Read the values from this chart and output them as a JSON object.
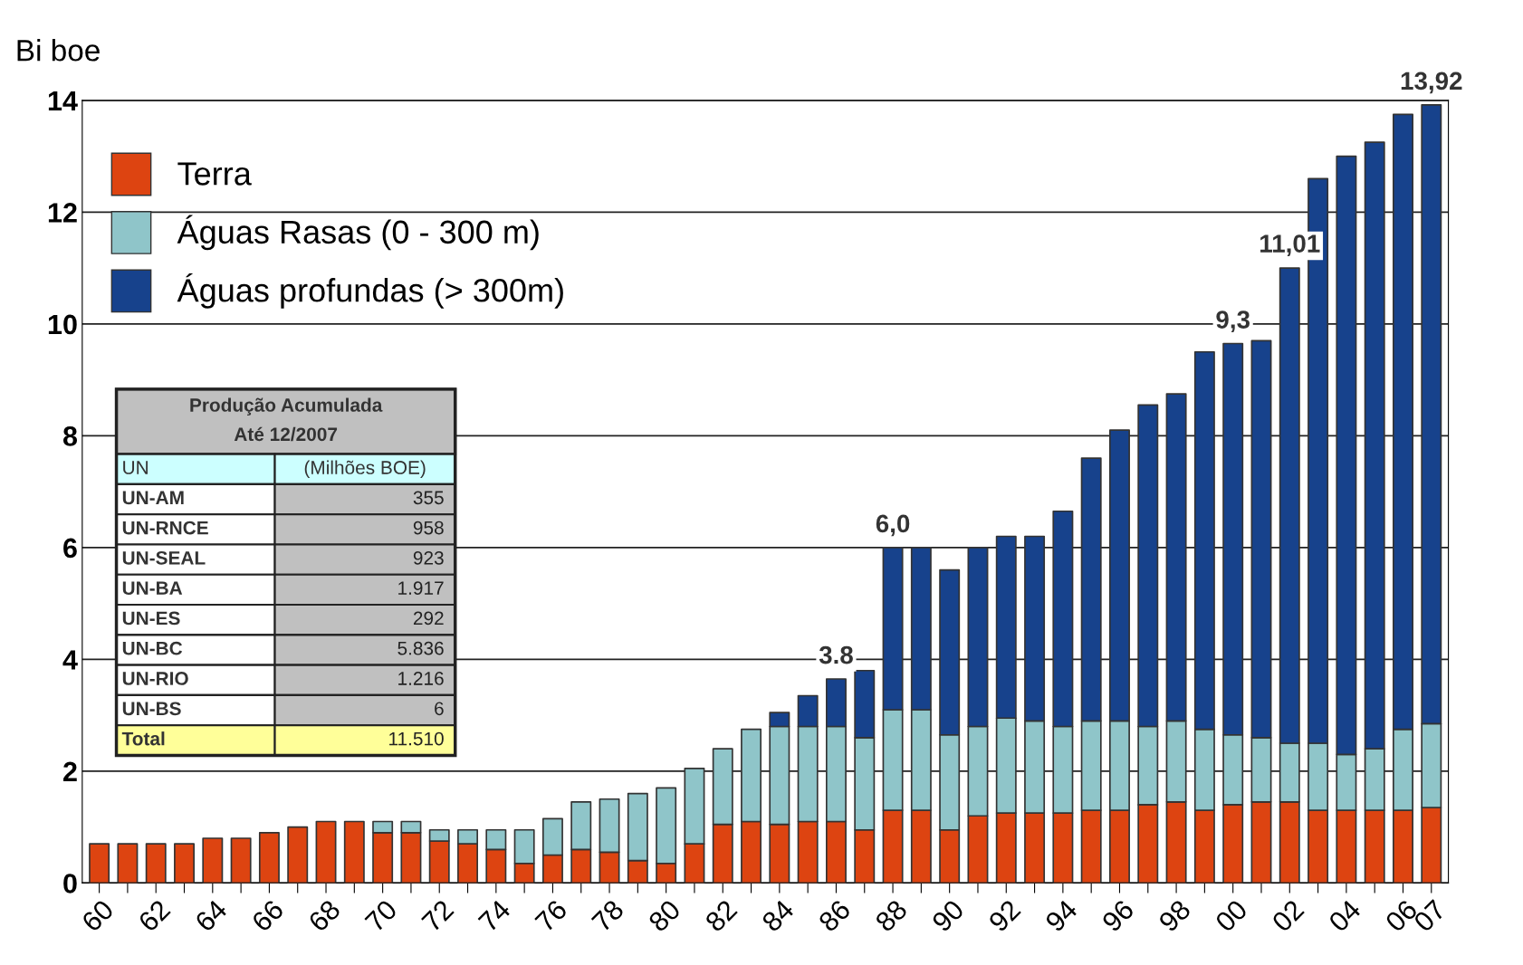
{
  "chart_data": {
    "type": "bar",
    "stacked": true,
    "ylabel": "Bi boe",
    "categories": [
      "60",
      null,
      "62",
      null,
      "64",
      null,
      "66",
      null,
      "68",
      null,
      "70",
      null,
      "72",
      null,
      "74",
      null,
      "76",
      null,
      "78",
      null,
      "80",
      null,
      "82",
      null,
      "84",
      null,
      "86",
      null,
      "88",
      null,
      "90",
      null,
      "92",
      null,
      "94",
      null,
      "96",
      null,
      "98",
      null,
      "00",
      null,
      "02",
      null,
      "04",
      null,
      "06",
      "07"
    ],
    "series": [
      {
        "name": "Terra",
        "color": "#dd4411",
        "values": [
          0.7,
          0.7,
          0.7,
          0.7,
          0.8,
          0.8,
          0.9,
          1.0,
          1.1,
          1.1,
          0.9,
          0.9,
          0.75,
          0.7,
          0.6,
          0.35,
          0.5,
          0.6,
          0.55,
          0.4,
          0.35,
          0.7,
          1.05,
          1.1,
          1.05,
          1.1,
          1.1,
          0.95,
          1.3,
          1.3,
          0.95,
          1.2,
          1.25,
          1.25,
          1.25,
          1.3,
          1.3,
          1.4,
          1.45,
          1.3,
          1.4,
          1.45,
          1.45,
          1.3,
          1.3,
          1.3,
          1.3,
          1.35
        ]
      },
      {
        "name": "Águas Rasas (0 - 300 m)",
        "color": "#8fc5c9",
        "values": [
          null,
          null,
          null,
          null,
          null,
          null,
          null,
          null,
          null,
          null,
          0.2,
          0.2,
          0.2,
          0.25,
          0.35,
          0.6,
          0.65,
          0.85,
          0.95,
          1.2,
          1.35,
          1.35,
          1.35,
          1.65,
          1.75,
          1.7,
          1.7,
          1.65,
          1.8,
          1.8,
          1.7,
          1.6,
          1.7,
          1.65,
          1.55,
          1.6,
          1.6,
          1.4,
          1.45,
          1.45,
          1.25,
          1.15,
          1.05,
          1.2,
          1.0,
          1.1,
          1.45,
          1.5
        ]
      },
      {
        "name": "Águas profundas (> 300m)",
        "color": "#17428c",
        "values": [
          null,
          null,
          null,
          null,
          null,
          null,
          null,
          null,
          null,
          null,
          null,
          null,
          null,
          null,
          null,
          null,
          null,
          null,
          null,
          null,
          null,
          null,
          null,
          null,
          0.25,
          0.55,
          0.85,
          1.2,
          2.9,
          2.9,
          2.95,
          3.2,
          3.25,
          3.3,
          3.85,
          4.7,
          5.2,
          5.75,
          5.85,
          6.75,
          7.0,
          7.1,
          8.5,
          10.1,
          10.7,
          10.85,
          11.0,
          11.07
        ]
      }
    ],
    "ylim": [
      0,
      14
    ],
    "yticks": [
      0,
      2,
      4,
      6,
      8,
      10,
      12,
      14
    ],
    "grid": "y",
    "legend": "top left",
    "annotations": [
      {
        "text": "3.8",
        "x": "86",
        "y": 3.65
      },
      {
        "text": "6,0",
        "x": "88",
        "y": 6.0
      },
      {
        "text": "9,3",
        "x": "00",
        "y": 9.65
      },
      {
        "text": "11,01",
        "x": "02",
        "y": 11.01
      },
      {
        "text": "13,92",
        "x": "07",
        "y": 13.92
      },
      "Produção Acumulada",
      "Até 12/2007",
      "UN",
      "(Milhões BOE)",
      "UN-AM",
      "355",
      "UN-RNCE",
      "958",
      "UN-SEAL",
      "923",
      "UN-BA",
      "1.917",
      "UN-ES",
      "292",
      "UN-BC",
      "5.836",
      "UN-RIO",
      "1.216",
      "UN-BS",
      "6",
      "Total",
      "11.510"
    ]
  }
}
